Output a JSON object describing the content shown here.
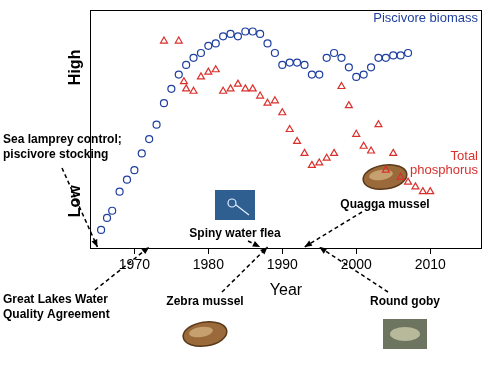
{
  "chart_data": {
    "type": "scatter",
    "x_label": "Year",
    "xlim": [
      1964,
      2017
    ],
    "xticks": [
      1970,
      1980,
      1990,
      2000,
      2010
    ],
    "ylim": [
      0,
      100
    ],
    "yticks": [
      {
        "value": 20,
        "label": "Low"
      },
      {
        "value": 76,
        "label": "High"
      }
    ],
    "grid": false,
    "series": [
      {
        "name": "Piscivore biomass",
        "color": "#1f3f9f",
        "marker": "circle",
        "x": [
          1965.5,
          1966.3,
          1967,
          1968,
          1969,
          1970,
          1971,
          1972,
          1973,
          1974,
          1975,
          1976,
          1977,
          1978,
          1979,
          1980,
          1981,
          1982,
          1983,
          1984,
          1985,
          1986,
          1987,
          1988,
          1989,
          1990,
          1991,
          1992,
          1993,
          1994,
          1995,
          1996,
          1997,
          1998,
          1999,
          2000,
          2001,
          2002,
          2003,
          2004,
          2005,
          2006,
          2007
        ],
        "values": [
          8,
          13,
          16,
          24,
          29,
          33,
          40,
          46,
          52,
          61,
          67,
          73,
          77,
          80,
          82,
          85,
          86,
          89,
          90,
          89,
          91,
          91,
          90,
          86,
          82,
          77,
          78,
          78,
          77,
          73,
          73,
          80,
          82,
          80,
          76,
          72,
          73,
          76,
          80,
          80,
          81,
          81,
          82
        ]
      },
      {
        "name": "Total phosphorus",
        "color": "#d9302c",
        "marker": "triangle",
        "x": [
          1974,
          1976,
          1976.7,
          1977,
          1978,
          1979,
          1980,
          1981,
          1982,
          1983,
          1984,
          1985,
          1986,
          1987,
          1988,
          1989,
          1990,
          1991,
          1992,
          1993,
          1994,
          1995,
          1996,
          1997,
          1998,
          1999,
          2000,
          2001,
          2002,
          2003,
          2004,
          2005,
          2006,
          2007,
          2008,
          2009,
          2010
        ],
        "values": [
          87,
          87,
          70,
          67,
          66,
          72,
          74,
          75,
          66,
          67,
          69,
          67,
          67,
          64,
          61,
          62,
          57,
          50,
          45,
          40,
          35,
          36,
          38,
          40,
          68,
          60,
          48,
          43,
          41,
          52,
          33,
          40,
          30,
          28,
          26,
          24,
          24
        ]
      }
    ],
    "annotations": [
      {
        "text": [
          "Sea lamprey control;",
          "piscivore stocking"
        ],
        "year": 1965
      },
      {
        "text": [
          "Great Lakes Water",
          "Quality Agreement"
        ],
        "year": 1972
      },
      {
        "text": [
          "Spiny water flea"
        ],
        "year": 1987
      },
      {
        "text": [
          "Zebra mussel"
        ],
        "year": 1988
      },
      {
        "text": [
          "Quagga mussel"
        ],
        "year": 1993
      },
      {
        "text": [
          "Round goby"
        ],
        "year": 1995
      }
    ]
  }
}
